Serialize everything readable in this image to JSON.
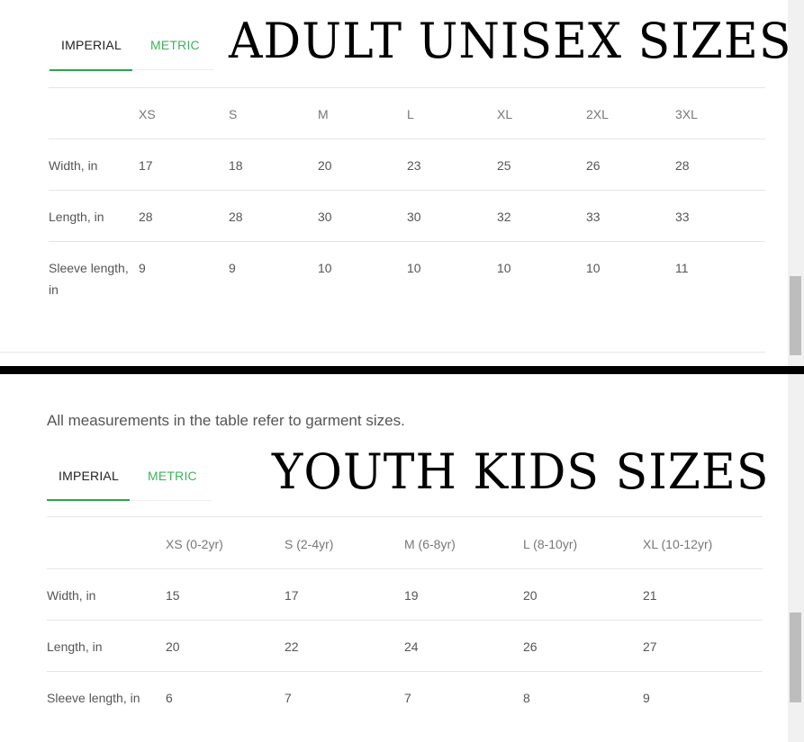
{
  "adult": {
    "banner": "ADULT UNISEX SIZES",
    "tabs": [
      {
        "label": "IMPERIAL",
        "active": true
      },
      {
        "label": "METRIC",
        "active": false
      }
    ],
    "headers": [
      "",
      "XS",
      "S",
      "M",
      "L",
      "XL",
      "2XL",
      "3XL"
    ],
    "rows": [
      [
        "Width, in",
        "17",
        "18",
        "20",
        "23",
        "25",
        "26",
        "28"
      ],
      [
        "Length, in",
        "28",
        "28",
        "30",
        "30",
        "32",
        "33",
        "33"
      ],
      [
        "Sleeve length, in",
        "9",
        "9",
        "10",
        "10",
        "10",
        "10",
        "11"
      ]
    ]
  },
  "youth": {
    "note": "All measurements in the table refer to garment sizes.",
    "banner": "YOUTH KIDS SIZES",
    "tabs": [
      {
        "label": "IMPERIAL",
        "active": true
      },
      {
        "label": "METRIC",
        "active": false
      }
    ],
    "headers": [
      "",
      "XS (0-2yr)",
      "S (2-4yr)",
      "M (6-8yr)",
      "L (8-10yr)",
      "XL (10-12yr)"
    ],
    "rows": [
      [
        "Width, in",
        "15",
        "17",
        "19",
        "20",
        "21"
      ],
      [
        "Length, in",
        "20",
        "22",
        "24",
        "26",
        "27"
      ],
      [
        "Sleeve length, in",
        "6",
        "7",
        "7",
        "8",
        "9"
      ]
    ]
  },
  "colors": {
    "accent": "#2ea44f",
    "tab_inactive": "#3db35a",
    "divider": "#000000"
  }
}
